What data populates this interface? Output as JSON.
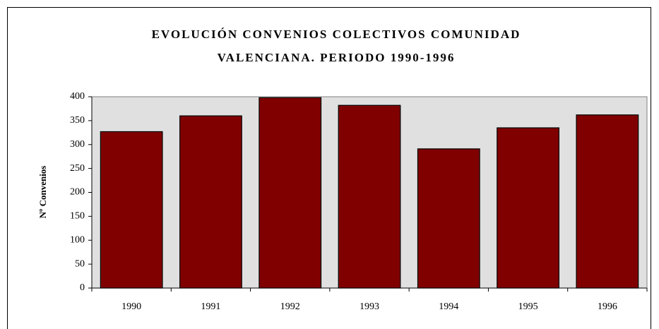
{
  "chart_data": {
    "type": "bar",
    "title": [
      "EVOLUCIÓN CONVENIOS COLECTIVOS COMUNIDAD",
      "VALENCIANA. PERIODO 1990-1996"
    ],
    "y_label": "Nº Convenios",
    "categories": [
      "1990",
      "1991",
      "1992",
      "1993",
      "1994",
      "1995",
      "1996"
    ],
    "values": [
      327,
      360,
      398,
      382,
      291,
      335,
      362
    ],
    "color": "#800000",
    "ylim": [
      0,
      400
    ],
    "yticks": [
      0,
      50,
      100,
      150,
      200,
      250,
      300,
      350,
      400
    ],
    "grid": false
  }
}
